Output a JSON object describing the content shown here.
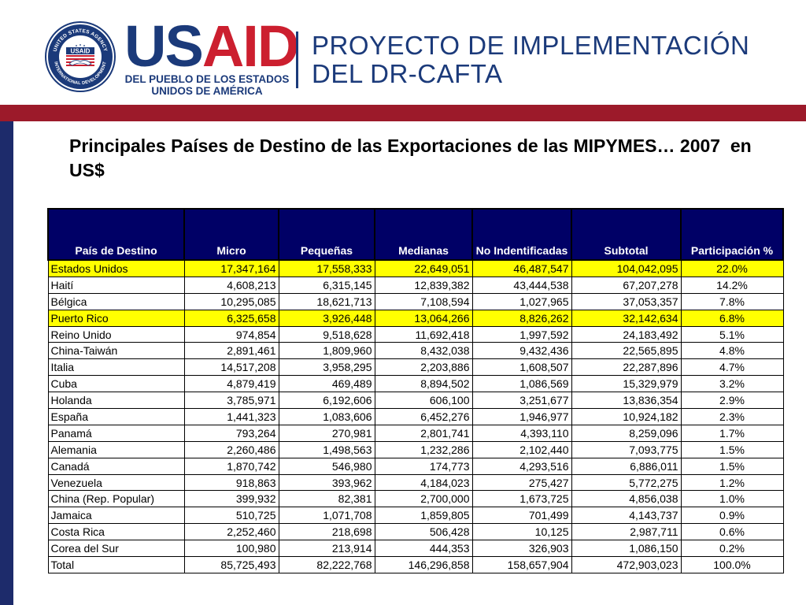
{
  "logo": {
    "seal_text_top": "UNITED STATES AGENCY",
    "seal_text_bottom": "INTERNATIONAL DEVELOPMENT",
    "seal_center": "USAID",
    "wordmark_us": "US",
    "wordmark_aid": "AID",
    "subline1": "DEL PUEBLO DE LOS ESTADOS",
    "subline2": "UNIDOS DE AMÉRICA"
  },
  "project": {
    "line1": "PROYECTO DE IMPLEMENTACIÓN",
    "line2": "DEL DR-CAFTA"
  },
  "colors": {
    "navy": "#1b3a7a",
    "red": "#cc1f2f",
    "band_red": "#9c1a2a",
    "header_fill": "#000066",
    "highlight": "#ffff00"
  },
  "title": "Principales Países de Destino de las Exportaciones de las MIPYMES… 2007  en US$",
  "table": {
    "headers": [
      "País de Destino",
      "Micro",
      "Pequeñas",
      "Medianas",
      "No Indentificadas",
      "Subtotal",
      "Participación %"
    ],
    "rows": [
      {
        "highlight": true,
        "cells": [
          "Estados Unidos",
          "17,347,164",
          "17,558,333",
          "22,649,051",
          "46,487,547",
          "104,042,095",
          "22.0%"
        ]
      },
      {
        "highlight": false,
        "cells": [
          "Haití",
          "4,608,213",
          "6,315,145",
          "12,839,382",
          "43,444,538",
          "67,207,278",
          "14.2%"
        ]
      },
      {
        "highlight": false,
        "cells": [
          "Bélgica",
          "10,295,085",
          "18,621,713",
          "7,108,594",
          "1,027,965",
          "37,053,357",
          "7.8%"
        ]
      },
      {
        "highlight": true,
        "cells": [
          "Puerto Rico",
          "6,325,658",
          "3,926,448",
          "13,064,266",
          "8,826,262",
          "32,142,634",
          "6.8%"
        ]
      },
      {
        "highlight": false,
        "cells": [
          "Reino Unido",
          "974,854",
          "9,518,628",
          "11,692,418",
          "1,997,592",
          "24,183,492",
          "5.1%"
        ]
      },
      {
        "highlight": false,
        "cells": [
          "China-Taiwán",
          "2,891,461",
          "1,809,960",
          "8,432,038",
          "9,432,436",
          "22,565,895",
          "4.8%"
        ]
      },
      {
        "highlight": false,
        "cells": [
          "Italia",
          "14,517,208",
          "3,958,295",
          "2,203,886",
          "1,608,507",
          "22,287,896",
          "4.7%"
        ]
      },
      {
        "highlight": false,
        "cells": [
          "Cuba",
          "4,879,419",
          "469,489",
          "8,894,502",
          "1,086,569",
          "15,329,979",
          "3.2%"
        ]
      },
      {
        "highlight": false,
        "cells": [
          "Holanda",
          "3,785,971",
          "6,192,606",
          "606,100",
          "3,251,677",
          "13,836,354",
          "2.9%"
        ]
      },
      {
        "highlight": false,
        "cells": [
          "España",
          "1,441,323",
          "1,083,606",
          "6,452,276",
          "1,946,977",
          "10,924,182",
          "2.3%"
        ]
      },
      {
        "highlight": false,
        "cells": [
          "Panamá",
          "793,264",
          "270,981",
          "2,801,741",
          "4,393,110",
          "8,259,096",
          "1.7%"
        ]
      },
      {
        "highlight": false,
        "cells": [
          "Alemania",
          "2,260,486",
          "1,498,563",
          "1,232,286",
          "2,102,440",
          "7,093,775",
          "1.5%"
        ]
      },
      {
        "highlight": false,
        "cells": [
          "Canadá",
          "1,870,742",
          "546,980",
          "174,773",
          "4,293,516",
          "6,886,011",
          "1.5%"
        ]
      },
      {
        "highlight": false,
        "cells": [
          "Venezuela",
          "918,863",
          "393,962",
          "4,184,023",
          "275,427",
          "5,772,275",
          "1.2%"
        ]
      },
      {
        "highlight": false,
        "cells": [
          "China (Rep. Popular)",
          "399,932",
          "82,381",
          "2,700,000",
          "1,673,725",
          "4,856,038",
          "1.0%"
        ]
      },
      {
        "highlight": false,
        "cells": [
          "Jamaica",
          "510,725",
          "1,071,708",
          "1,859,805",
          "701,499",
          "4,143,737",
          "0.9%"
        ]
      },
      {
        "highlight": false,
        "cells": [
          "Costa Rica",
          "2,252,460",
          "218,698",
          "506,428",
          "10,125",
          "2,987,711",
          "0.6%"
        ]
      },
      {
        "highlight": false,
        "cells": [
          "Corea del Sur",
          "100,980",
          "213,914",
          "444,353",
          "326,903",
          "1,086,150",
          "0.2%"
        ]
      },
      {
        "highlight": false,
        "cells": [
          "Total",
          "85,725,493",
          "82,222,768",
          "146,296,858",
          "158,657,904",
          "472,903,023",
          "100.0%"
        ]
      }
    ]
  }
}
